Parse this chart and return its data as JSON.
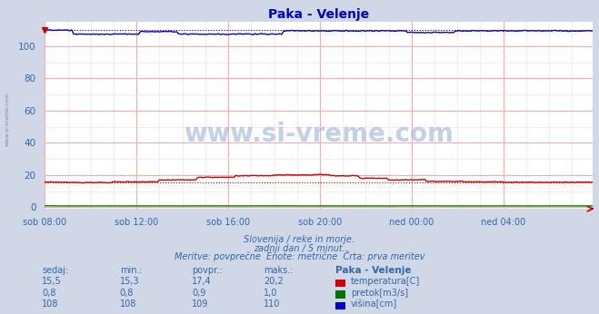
{
  "title": "Paka - Velenje",
  "title_color": "#0000cc",
  "bg_color": "#d0d8e8",
  "plot_bg_color": "#ffffff",
  "grid_color_major": "#ffaaaa",
  "grid_color_minor": "#ffdddd",
  "xlabel_ticks": [
    "sob 08:00",
    "sob 12:00",
    "sob 16:00",
    "sob 20:00",
    "ned 00:00",
    "ned 04:00"
  ],
  "tick_positions": [
    0,
    48,
    96,
    144,
    192,
    240
  ],
  "ylim": [
    -1,
    115
  ],
  "xlim": [
    0,
    287
  ],
  "n_points": 288,
  "temp_color": "#cc0000",
  "flow_color": "#007700",
  "height_color": "#0000cc",
  "watermark": "www.si-vreme.com",
  "watermark_color": "#7799cc",
  "left_label": "www.si-vreme.com",
  "subtitle1": "Slovenija / reke in morje.",
  "subtitle2": "zadnji dan / 5 minut.",
  "subtitle3": "Meritve: povprečne  Enote: metrične  Črta: prva meritev",
  "text_color": "#3366aa",
  "table_header": [
    "sedaj:",
    "min.:",
    "povpr.:",
    "maks.:",
    "Paka - Velenje"
  ],
  "table_data": [
    [
      "15,5",
      "15,3",
      "17,4",
      "20,2",
      "temperatura[C]"
    ],
    [
      "0,8",
      "0,8",
      "0,9",
      "1,0",
      "pretok[m3/s]"
    ],
    [
      "108",
      "108",
      "109",
      "110",
      "višina[cm]"
    ]
  ],
  "legend_colors": [
    "#cc0000",
    "#007700",
    "#0000cc"
  ],
  "yticks": [
    0,
    20,
    40,
    60,
    80,
    100
  ]
}
